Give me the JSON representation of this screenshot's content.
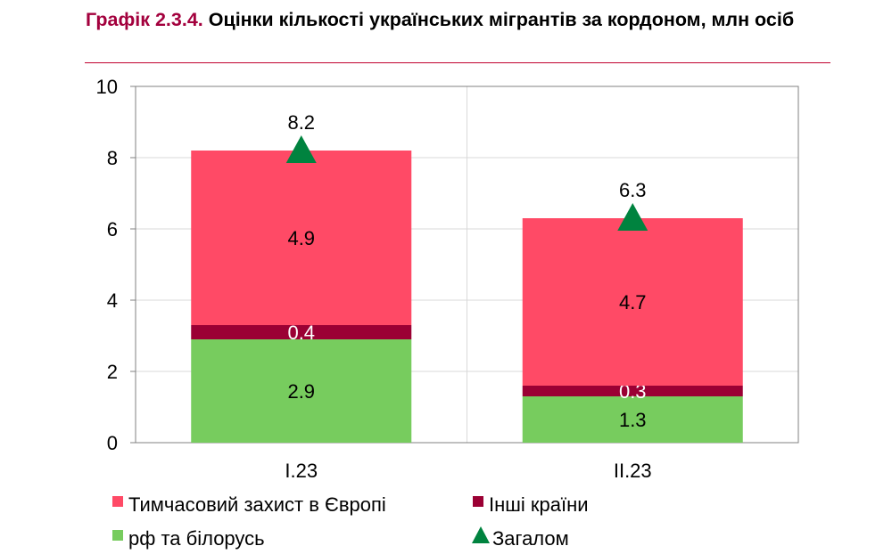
{
  "chart_data": {
    "type": "bar",
    "stacked": true,
    "title_number": "Графік 2.3.4.",
    "title": "Оцінки кількості українських мігрантів за кордоном, млн осіб",
    "categories": [
      "I.23",
      "II.23"
    ],
    "ylim": [
      0,
      10
    ],
    "yticks": [
      "0",
      "2",
      "4",
      "6",
      "8",
      "10"
    ],
    "series": [
      {
        "name": "рф та білорусь",
        "color": "#77CC5E",
        "values": [
          2.9,
          1.3
        ],
        "labels": [
          "2.9",
          "1.3"
        ]
      },
      {
        "name": "Інші країни",
        "color": "#9B0034",
        "values": [
          0.4,
          0.3
        ],
        "labels": [
          "0.4",
          "0.3"
        ]
      },
      {
        "name": "Тимчасовий захист в Європі",
        "color": "#FF4A66",
        "values": [
          4.9,
          4.7
        ],
        "labels": [
          "4.9",
          "4.7"
        ]
      }
    ],
    "total": {
      "name": "Загалом",
      "color": "#00833F",
      "values": [
        8.2,
        6.3
      ],
      "labels": [
        "8.2",
        "6.3"
      ]
    },
    "legend": [
      "Тимчасовий захист в Європі",
      "Інші країни",
      "рф та білорусь",
      "Загалом"
    ],
    "legend_position": "bottom"
  }
}
